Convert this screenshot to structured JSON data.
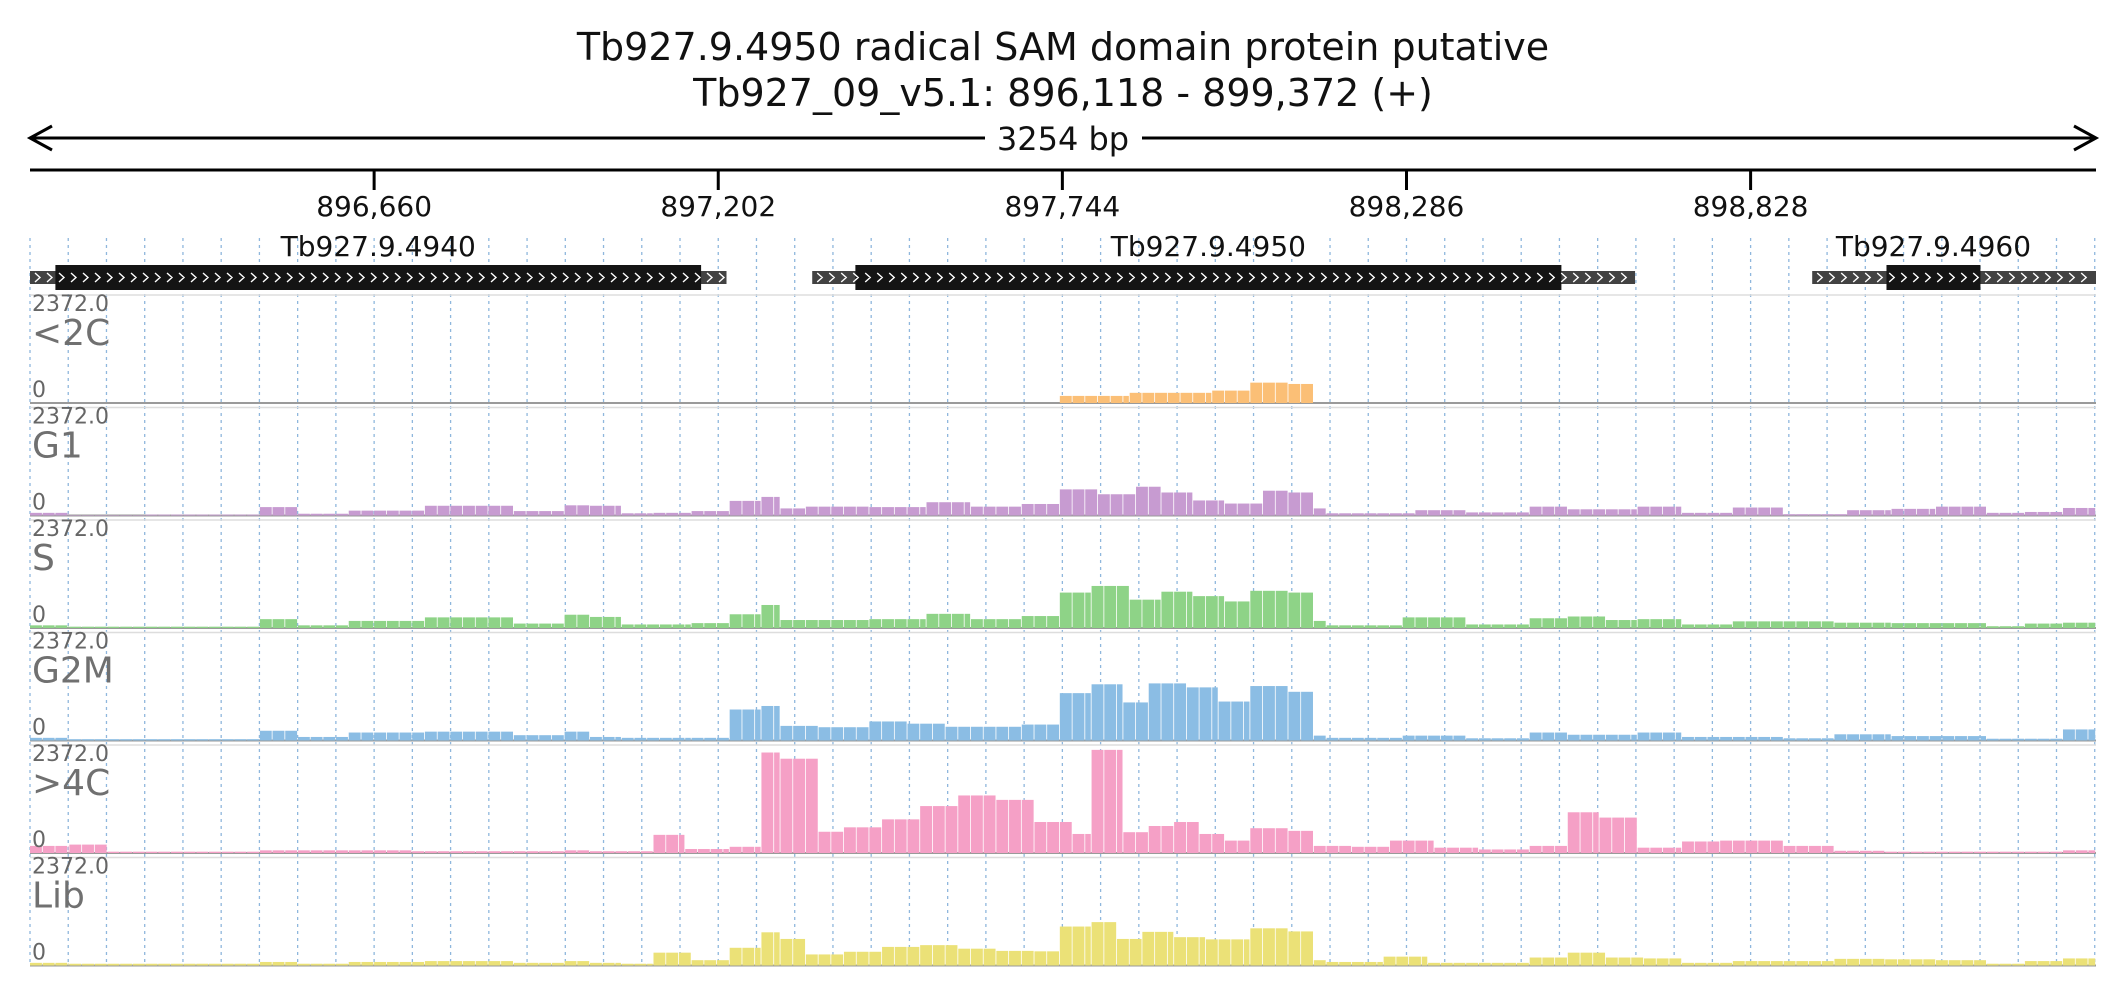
{
  "chart_data": {
    "type": "genome-browser-coverage",
    "title": "Tb927.9.4950  radical SAM domain protein  putative",
    "subtitle": "Tb927_09_v5.1: 896,118 - 899,372 (+)",
    "span_label": "3254 bp",
    "x_range": [
      896118,
      899372
    ],
    "ruler_ticks": [
      {
        "value": 896660,
        "label": "896,660"
      },
      {
        "value": 897202,
        "label": "897,202"
      },
      {
        "value": 897744,
        "label": "897,744"
      },
      {
        "value": 898286,
        "label": "898,286"
      },
      {
        "value": 898828,
        "label": "898,828"
      }
    ],
    "genes": [
      {
        "name": "Tb927.9.4940",
        "strand": "+",
        "start": 896118,
        "end": 897215,
        "cds_start": 896158,
        "cds_end": 897175
      },
      {
        "name": "Tb927.9.4950",
        "strand": "+",
        "start": 897350,
        "end": 898646,
        "cds_start": 897418,
        "cds_end": 898530
      },
      {
        "name": "Tb927.9.4960",
        "strand": "+",
        "start": 898925,
        "end": 899372,
        "cds_start": 899042,
        "cds_end": 899190
      }
    ],
    "track_max_label": "2372.0",
    "track_min_label": "0",
    "y_max": 2372,
    "bin_size": 20,
    "series": [
      {
        "name": "<2C",
        "color": "#fbbf76",
        "segments": [
          [
            897740,
            897850,
            160
          ],
          [
            897850,
            897980,
            230
          ],
          [
            897980,
            898040,
            280
          ],
          [
            898040,
            898100,
            460
          ],
          [
            898100,
            898140,
            430
          ]
        ]
      },
      {
        "name": "G1",
        "color": "#c79bd1",
        "segments": [
          [
            896118,
            896180,
            60
          ],
          [
            896180,
            896300,
            10
          ],
          [
            896300,
            896480,
            20
          ],
          [
            896480,
            896540,
            190
          ],
          [
            896540,
            896620,
            40
          ],
          [
            896620,
            896740,
            110
          ],
          [
            896740,
            896880,
            220
          ],
          [
            896880,
            896960,
            100
          ],
          [
            896960,
            897000,
            230
          ],
          [
            897000,
            897050,
            220
          ],
          [
            897050,
            897100,
            50
          ],
          [
            897100,
            897160,
            60
          ],
          [
            897160,
            897220,
            100
          ],
          [
            897220,
            897270,
            330
          ],
          [
            897270,
            897300,
            420
          ],
          [
            897300,
            897340,
            160
          ],
          [
            897340,
            897440,
            200
          ],
          [
            897440,
            897530,
            190
          ],
          [
            897530,
            897600,
            300
          ],
          [
            897600,
            897680,
            200
          ],
          [
            897680,
            897740,
            260
          ],
          [
            897740,
            897800,
            590
          ],
          [
            897800,
            897860,
            480
          ],
          [
            897860,
            897900,
            650
          ],
          [
            897900,
            897950,
            520
          ],
          [
            897950,
            898000,
            340
          ],
          [
            898000,
            898060,
            270
          ],
          [
            898060,
            898100,
            560
          ],
          [
            898100,
            898140,
            520
          ],
          [
            898140,
            898160,
            160
          ],
          [
            898160,
            898300,
            50
          ],
          [
            898300,
            898380,
            120
          ],
          [
            898380,
            898480,
            70
          ],
          [
            898480,
            898540,
            200
          ],
          [
            898540,
            898650,
            140
          ],
          [
            898650,
            898720,
            200
          ],
          [
            898720,
            898800,
            60
          ],
          [
            898800,
            898880,
            180
          ],
          [
            898880,
            898980,
            30
          ],
          [
            898980,
            899050,
            120
          ],
          [
            899050,
            899120,
            150
          ],
          [
            899120,
            899200,
            200
          ],
          [
            899200,
            899260,
            60
          ],
          [
            899260,
            899320,
            80
          ],
          [
            899320,
            899372,
            170
          ]
        ]
      },
      {
        "name": "S",
        "color": "#8ed387",
        "segments": [
          [
            896118,
            896180,
            60
          ],
          [
            896180,
            896480,
            30
          ],
          [
            896480,
            896540,
            200
          ],
          [
            896540,
            896620,
            60
          ],
          [
            896620,
            896740,
            160
          ],
          [
            896740,
            896880,
            240
          ],
          [
            896880,
            896960,
            100
          ],
          [
            896960,
            897000,
            300
          ],
          [
            897000,
            897050,
            250
          ],
          [
            897050,
            897160,
            80
          ],
          [
            897160,
            897220,
            110
          ],
          [
            897220,
            897270,
            310
          ],
          [
            897270,
            897300,
            520
          ],
          [
            897300,
            897340,
            180
          ],
          [
            897340,
            897440,
            180
          ],
          [
            897440,
            897530,
            200
          ],
          [
            897530,
            897600,
            320
          ],
          [
            897600,
            897680,
            200
          ],
          [
            897680,
            897740,
            270
          ],
          [
            897740,
            897790,
            800
          ],
          [
            897790,
            897850,
            950
          ],
          [
            897850,
            897900,
            640
          ],
          [
            897900,
            897950,
            820
          ],
          [
            897950,
            898000,
            720
          ],
          [
            898000,
            898040,
            600
          ],
          [
            898040,
            898100,
            840
          ],
          [
            898100,
            898140,
            800
          ],
          [
            898140,
            898160,
            160
          ],
          [
            898160,
            898280,
            60
          ],
          [
            898280,
            898380,
            240
          ],
          [
            898380,
            898480,
            80
          ],
          [
            898480,
            898540,
            220
          ],
          [
            898540,
            898600,
            260
          ],
          [
            898600,
            898650,
            180
          ],
          [
            898650,
            898720,
            200
          ],
          [
            898720,
            898800,
            80
          ],
          [
            898800,
            898960,
            150
          ],
          [
            898960,
            899050,
            120
          ],
          [
            899050,
            899200,
            110
          ],
          [
            899200,
            899260,
            40
          ],
          [
            899260,
            899320,
            100
          ],
          [
            899320,
            899372,
            120
          ]
        ]
      },
      {
        "name": "G2M",
        "color": "#8bbde4",
        "segments": [
          [
            896118,
            896180,
            60
          ],
          [
            896180,
            896480,
            30
          ],
          [
            896480,
            896540,
            220
          ],
          [
            896540,
            896620,
            80
          ],
          [
            896620,
            896740,
            180
          ],
          [
            896740,
            896880,
            200
          ],
          [
            896880,
            896960,
            120
          ],
          [
            896960,
            897000,
            200
          ],
          [
            897000,
            897050,
            80
          ],
          [
            897050,
            897160,
            60
          ],
          [
            897160,
            897220,
            60
          ],
          [
            897220,
            897270,
            700
          ],
          [
            897270,
            897300,
            780
          ],
          [
            897300,
            897360,
            330
          ],
          [
            897360,
            897440,
            300
          ],
          [
            897440,
            897500,
            430
          ],
          [
            897500,
            897560,
            380
          ],
          [
            897560,
            897620,
            310
          ],
          [
            897620,
            897680,
            310
          ],
          [
            897680,
            897740,
            360
          ],
          [
            897740,
            897790,
            1070
          ],
          [
            897790,
            897840,
            1270
          ],
          [
            897840,
            897880,
            860
          ],
          [
            897880,
            897940,
            1290
          ],
          [
            897940,
            897990,
            1200
          ],
          [
            897990,
            898040,
            880
          ],
          [
            898040,
            898100,
            1230
          ],
          [
            898100,
            898140,
            1100
          ],
          [
            898140,
            898160,
            110
          ],
          [
            898160,
            898280,
            60
          ],
          [
            898280,
            898380,
            110
          ],
          [
            898380,
            898480,
            50
          ],
          [
            898480,
            898540,
            180
          ],
          [
            898540,
            898650,
            130
          ],
          [
            898650,
            898720,
            180
          ],
          [
            898720,
            898880,
            80
          ],
          [
            898880,
            898960,
            50
          ],
          [
            898960,
            899050,
            140
          ],
          [
            899050,
            899200,
            100
          ],
          [
            899200,
            899320,
            40
          ],
          [
            899320,
            899372,
            250
          ]
        ]
      },
      {
        "name": ">4C",
        "color": "#f5a0c6",
        "segments": [
          [
            896118,
            896180,
            160
          ],
          [
            896180,
            896240,
            190
          ],
          [
            896240,
            896480,
            30
          ],
          [
            896480,
            896720,
            60
          ],
          [
            896720,
            896960,
            40
          ],
          [
            896960,
            897000,
            60
          ],
          [
            897000,
            897100,
            40
          ],
          [
            897100,
            897150,
            410
          ],
          [
            897150,
            897220,
            90
          ],
          [
            897220,
            897270,
            140
          ],
          [
            897270,
            897300,
            2270
          ],
          [
            897300,
            897360,
            2130
          ],
          [
            897360,
            897400,
            480
          ],
          [
            897400,
            897460,
            580
          ],
          [
            897460,
            897520,
            760
          ],
          [
            897520,
            897580,
            1060
          ],
          [
            897580,
            897640,
            1300
          ],
          [
            897640,
            897700,
            1200
          ],
          [
            897700,
            897760,
            700
          ],
          [
            897760,
            897790,
            430
          ],
          [
            897790,
            897840,
            2330
          ],
          [
            897840,
            897880,
            470
          ],
          [
            897880,
            897920,
            610
          ],
          [
            897920,
            897960,
            700
          ],
          [
            897960,
            898000,
            430
          ],
          [
            898000,
            898040,
            280
          ],
          [
            898040,
            898100,
            560
          ],
          [
            898100,
            898140,
            500
          ],
          [
            898140,
            898200,
            160
          ],
          [
            898200,
            898260,
            140
          ],
          [
            898260,
            898330,
            280
          ],
          [
            898330,
            898400,
            120
          ],
          [
            898400,
            898480,
            80
          ],
          [
            898480,
            898540,
            160
          ],
          [
            898540,
            898590,
            920
          ],
          [
            898590,
            898650,
            800
          ],
          [
            898650,
            898720,
            120
          ],
          [
            898720,
            898780,
            260
          ],
          [
            898780,
            898880,
            280
          ],
          [
            898880,
            898960,
            160
          ],
          [
            898960,
            899040,
            50
          ],
          [
            899040,
            899200,
            30
          ],
          [
            899200,
            899320,
            30
          ],
          [
            899320,
            899372,
            60
          ]
        ]
      },
      {
        "name": "Lib",
        "color": "#ebe177",
        "segments": [
          [
            896118,
            896180,
            60
          ],
          [
            896180,
            896480,
            40
          ],
          [
            896480,
            896540,
            80
          ],
          [
            896540,
            896620,
            40
          ],
          [
            896620,
            896740,
            80
          ],
          [
            896740,
            896880,
            100
          ],
          [
            896880,
            896960,
            60
          ],
          [
            896960,
            897000,
            100
          ],
          [
            897000,
            897050,
            60
          ],
          [
            897050,
            897100,
            40
          ],
          [
            897100,
            897160,
            290
          ],
          [
            897160,
            897220,
            120
          ],
          [
            897220,
            897270,
            400
          ],
          [
            897270,
            897300,
            750
          ],
          [
            897300,
            897340,
            600
          ],
          [
            897340,
            897400,
            250
          ],
          [
            897400,
            897460,
            310
          ],
          [
            897460,
            897520,
            420
          ],
          [
            897520,
            897580,
            460
          ],
          [
            897580,
            897640,
            380
          ],
          [
            897640,
            897700,
            330
          ],
          [
            897700,
            897740,
            320
          ],
          [
            897740,
            897790,
            880
          ],
          [
            897790,
            897830,
            980
          ],
          [
            897830,
            897870,
            600
          ],
          [
            897870,
            897920,
            760
          ],
          [
            897920,
            897970,
            640
          ],
          [
            897970,
            898040,
            590
          ],
          [
            898040,
            898100,
            840
          ],
          [
            898100,
            898140,
            770
          ],
          [
            898140,
            898160,
            120
          ],
          [
            898160,
            898250,
            80
          ],
          [
            898250,
            898320,
            200
          ],
          [
            898320,
            898480,
            60
          ],
          [
            898480,
            898540,
            180
          ],
          [
            898540,
            898600,
            290
          ],
          [
            898600,
            898660,
            180
          ],
          [
            898660,
            898720,
            160
          ],
          [
            898720,
            898800,
            60
          ],
          [
            898800,
            898960,
            100
          ],
          [
            898960,
            899040,
            150
          ],
          [
            899040,
            899120,
            140
          ],
          [
            899120,
            899200,
            120
          ],
          [
            899200,
            899260,
            40
          ],
          [
            899260,
            899320,
            100
          ],
          [
            899320,
            899372,
            160
          ]
        ]
      }
    ]
  }
}
